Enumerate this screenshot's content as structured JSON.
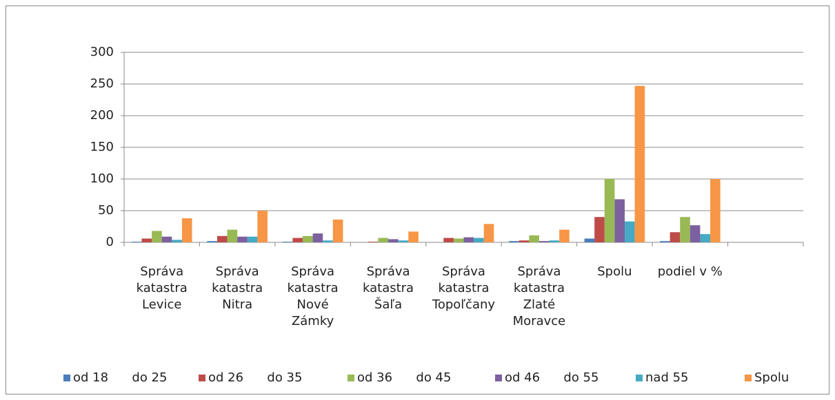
{
  "chart_data": {
    "type": "bar",
    "categories": [
      "Správa katastra Levice",
      "Správa katastra Nitra",
      "Správa katastra Nové Zámky",
      "Správa katastra Šaľa",
      "Správa katastra Topoľčany",
      "Správa katastra Zlaté Moravce",
      "Spolu",
      "podiel v %",
      null
    ],
    "series": [
      {
        "name": "od 18      do 25",
        "color": "#4a7ebb",
        "values": [
          1,
          2,
          1,
          0,
          0,
          2,
          6,
          2,
          null
        ]
      },
      {
        "name": "od 26      do 35",
        "color": "#be4b48",
        "values": [
          6,
          10,
          7,
          1,
          7,
          3,
          40,
          16,
          null
        ]
      },
      {
        "name": "od 36      do 45",
        "color": "#98b954",
        "values": [
          18,
          20,
          10,
          7,
          6,
          11,
          100,
          40,
          null
        ]
      },
      {
        "name": "od 46      do 55",
        "color": "#7d60a0",
        "values": [
          9,
          9,
          14,
          5,
          8,
          2,
          68,
          27,
          null
        ]
      },
      {
        "name": "nad 55",
        "color": "#46aac5",
        "values": [
          4,
          9,
          3,
          3,
          7,
          3,
          33,
          13,
          null
        ]
      },
      {
        "name": "Spolu",
        "color": "#f79646",
        "values": [
          38,
          50,
          36,
          17,
          29,
          20,
          247,
          100,
          null
        ]
      }
    ],
    "ylim": [
      0,
      300
    ],
    "yticks": [
      0,
      50,
      100,
      150,
      200,
      250,
      300
    ],
    "grid": true,
    "legend": "bottom"
  }
}
